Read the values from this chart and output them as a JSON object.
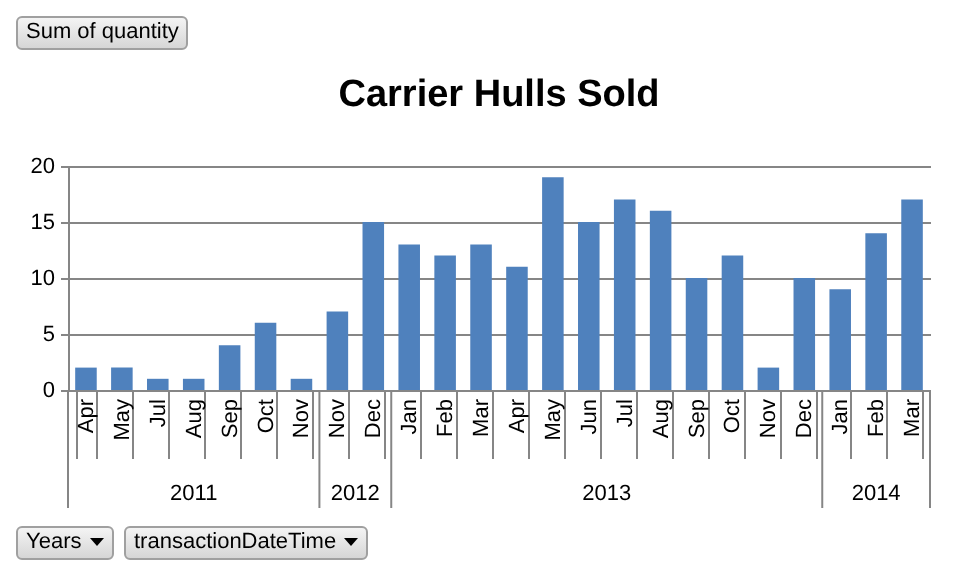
{
  "chart_data": {
    "type": "bar",
    "title": "Carrier Hulls Sold",
    "categories": [
      "Apr",
      "May",
      "Jul",
      "Aug",
      "Sep",
      "Oct",
      "Nov",
      "Nov",
      "Dec",
      "Jan",
      "Feb",
      "Mar",
      "Apr",
      "May",
      "Jun",
      "Jul",
      "Aug",
      "Sep",
      "Oct",
      "Nov",
      "Dec",
      "Jan",
      "Feb",
      "Mar"
    ],
    "series": [
      {
        "color": "#4f81bd",
        "values": [
          2,
          2,
          1,
          1,
          4,
          6,
          1,
          7,
          15,
          13,
          12,
          13,
          11,
          19,
          15,
          17,
          16,
          10,
          12,
          2,
          10,
          9,
          14,
          17
        ]
      }
    ],
    "ylim": [
      0,
      20
    ],
    "yticks": [
      0,
      5,
      10,
      15,
      20
    ],
    "grid": "y",
    "legend": false,
    "annotations": [
      "Sum of quantity",
      "Years",
      "transactionDateTime",
      "2011",
      "2012",
      "2013",
      "2014"
    ]
  }
}
